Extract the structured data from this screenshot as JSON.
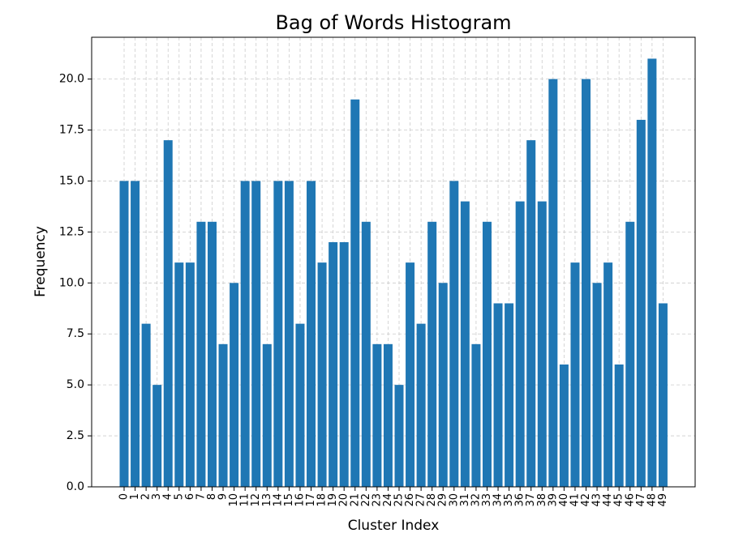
{
  "chart_data": {
    "type": "bar",
    "title": "Bag of Words Histogram",
    "xlabel": "Cluster Index",
    "ylabel": "Frequency",
    "ylim": [
      0,
      22.05
    ],
    "yticks": [
      "0.0",
      "2.5",
      "5.0",
      "7.5",
      "10.0",
      "12.5",
      "15.0",
      "17.5",
      "20.0"
    ],
    "grid": true,
    "bar_color": "#1f77b4",
    "categories": [
      "0",
      "1",
      "2",
      "3",
      "4",
      "5",
      "6",
      "7",
      "8",
      "9",
      "10",
      "11",
      "12",
      "13",
      "14",
      "15",
      "16",
      "17",
      "18",
      "19",
      "20",
      "21",
      "22",
      "23",
      "24",
      "25",
      "26",
      "27",
      "28",
      "29",
      "30",
      "31",
      "32",
      "33",
      "34",
      "35",
      "36",
      "37",
      "38",
      "39",
      "40",
      "41",
      "42",
      "43",
      "44",
      "45",
      "46",
      "47",
      "48",
      "49"
    ],
    "values": [
      15,
      15,
      8,
      5,
      17,
      11,
      11,
      13,
      13,
      7,
      10,
      15,
      15,
      7,
      15,
      15,
      8,
      15,
      11,
      12,
      12,
      19,
      13,
      7,
      7,
      5,
      11,
      8,
      13,
      10,
      15,
      14,
      7,
      13,
      9,
      9,
      14,
      17,
      14,
      20,
      6,
      11,
      20,
      10,
      11,
      6,
      13,
      18,
      21,
      9
    ]
  }
}
